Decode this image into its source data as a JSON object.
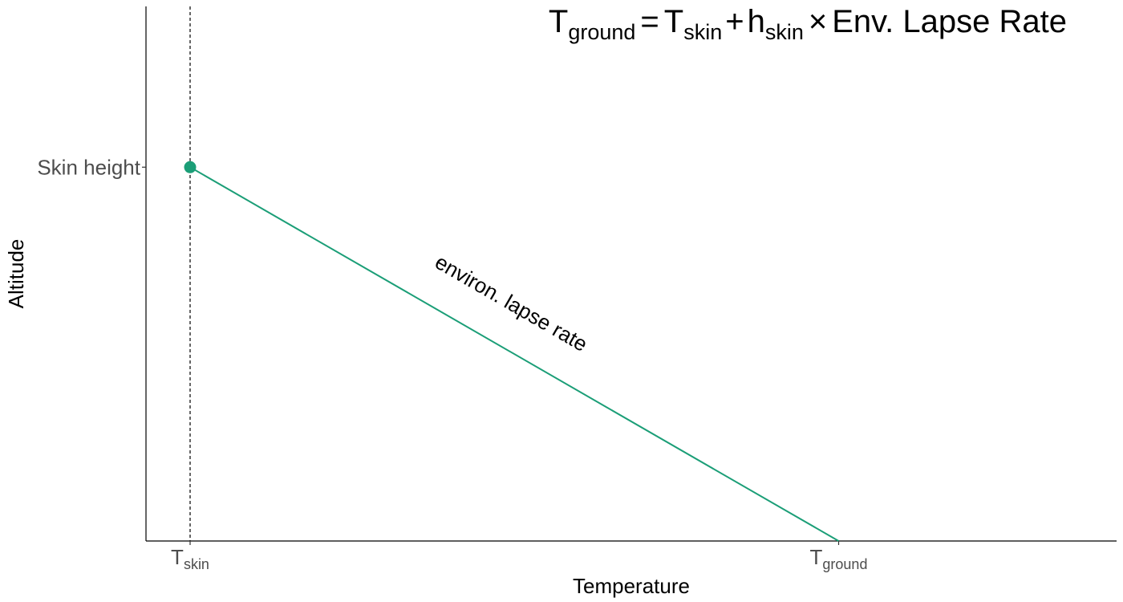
{
  "chart_data": {
    "type": "line",
    "title": "",
    "xlabel": "Temperature",
    "ylabel": "Altitude",
    "xlim": [
      0,
      22
    ],
    "ylim": [
      0,
      14.3
    ],
    "grid": false,
    "x_ticks": [
      {
        "value": 1,
        "main": "T",
        "sub": "skin"
      },
      {
        "value": 15.7,
        "main": "T",
        "sub": "ground"
      }
    ],
    "y_ticks": [
      {
        "value": 10,
        "label": "Skin height"
      }
    ],
    "series": [
      {
        "x": [
          1,
          15.7
        ],
        "y": [
          10,
          0
        ],
        "color": "#1b9e77"
      }
    ],
    "point": {
      "x": 1,
      "y": 10,
      "color": "#1b9e77"
    },
    "vline": {
      "x": 1,
      "style": "dashed",
      "color": "#000000"
    },
    "annotation": {
      "text": "environ. lapse rate",
      "x": 8.2,
      "y": 6.2,
      "angle": 30
    },
    "equation": {
      "t": "T",
      "ground": "ground",
      "equals": "=",
      "skin_t": "T",
      "skin1": "skin",
      "plus": "+",
      "h": "h",
      "skin2": "skin",
      "times": "×",
      "rest": "Env. Lapse Rate"
    }
  }
}
